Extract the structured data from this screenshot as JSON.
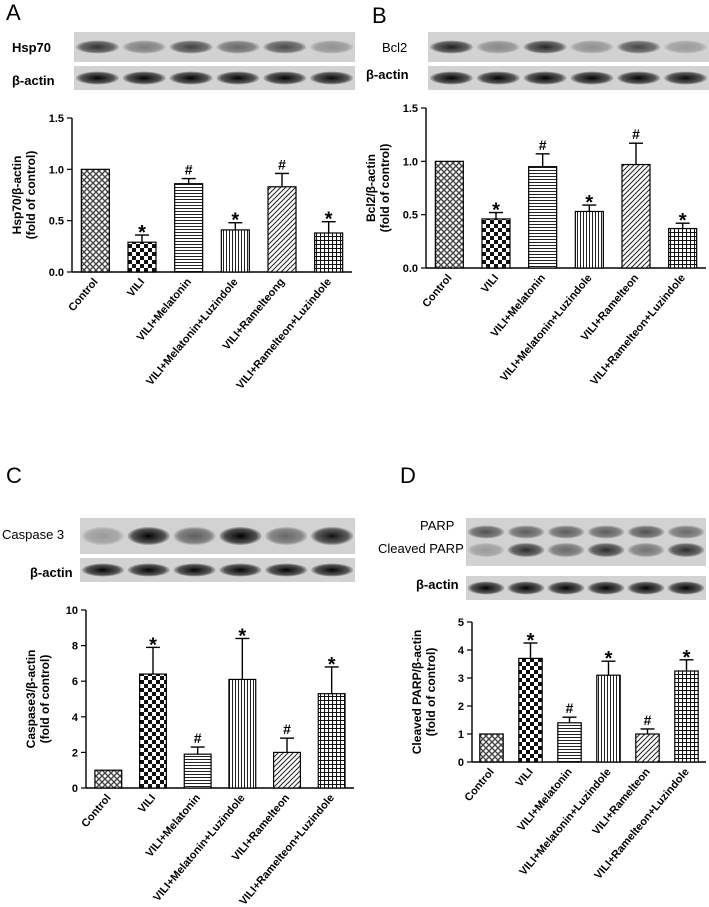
{
  "panels": [
    {
      "letter": "A",
      "blots": [
        {
          "label": "Hsp70",
          "intensity": [
            0.78,
            0.45,
            0.72,
            0.55,
            0.68,
            0.35
          ],
          "thin": true
        },
        {
          "label": "β-actin",
          "intensity": [
            0.95,
            0.95,
            0.95,
            0.95,
            0.95,
            0.93
          ],
          "thin": true
        }
      ],
      "chart_data": {
        "type": "bar",
        "ylabel": "Hsp70/β-actin\n(fold of control)",
        "ylim": [
          0,
          1.5
        ],
        "yticks": [
          "0.0",
          "0.5",
          "1.0",
          "1.5"
        ],
        "categories": [
          "Control",
          "VILI",
          "VILI+Melatonin",
          "VILI+Melatonin+Luzindole",
          "VILI+Ramelteong",
          "VILI+Ramelteon+Luzindole"
        ],
        "values": [
          1.0,
          0.29,
          0.86,
          0.41,
          0.83,
          0.38
        ],
        "errors": [
          0.0,
          0.07,
          0.05,
          0.07,
          0.13,
          0.11
        ],
        "annotations": [
          "",
          "*",
          "#",
          "*",
          "#",
          "*"
        ]
      }
    },
    {
      "letter": "B",
      "blots": [
        {
          "label": "Bcl2",
          "intensity": [
            0.85,
            0.4,
            0.82,
            0.35,
            0.7,
            0.3
          ],
          "thin": true
        },
        {
          "label": "β-actin",
          "intensity": [
            0.95,
            0.95,
            0.95,
            0.95,
            0.95,
            0.93
          ],
          "thin": true
        }
      ],
      "chart_data": {
        "type": "bar",
        "ylabel": "Bcl2/β-actin\n(fold of control)",
        "ylim": [
          0,
          1.5
        ],
        "yticks": [
          "0.0",
          "0.5",
          "1.0",
          "1.5"
        ],
        "categories": [
          "Control",
          "VILI",
          "VILI+Melatonin",
          "VILI+Melatonin+Luzindole",
          "VILI+Ramelteon",
          "VILI+Ramelteon+Luzindole"
        ],
        "values": [
          1.0,
          0.46,
          0.95,
          0.53,
          0.97,
          0.37
        ],
        "errors": [
          0.0,
          0.06,
          0.12,
          0.06,
          0.2,
          0.05
        ],
        "annotations": [
          "",
          "*",
          "#",
          "*",
          "#",
          "*"
        ]
      }
    },
    {
      "letter": "C",
      "blots": [
        {
          "label": "Caspase 3",
          "intensity": [
            0.3,
            0.98,
            0.6,
            1.0,
            0.55,
            0.9
          ],
          "thin": false
        },
        {
          "label": "β-actin",
          "intensity": [
            0.95,
            0.95,
            0.95,
            0.95,
            0.95,
            0.95
          ],
          "thin": true
        }
      ],
      "chart_data": {
        "type": "bar",
        "ylabel": "Caspase3/β-actin\n(fold of control)",
        "ylim": [
          0,
          10
        ],
        "yticks": [
          "0",
          "2",
          "4",
          "6",
          "8",
          "10"
        ],
        "categories": [
          "Control",
          "VILI",
          "VILI+Melatonin",
          "VILI+Melatonin+Luzindole",
          "VILI+Ramelteon",
          "VILI+Ramelteon+Luzindole"
        ],
        "values": [
          1.0,
          6.4,
          1.9,
          6.1,
          2.0,
          5.3
        ],
        "errors": [
          0.0,
          1.5,
          0.4,
          2.3,
          0.8,
          1.5
        ],
        "annotations": [
          "",
          "*",
          "#",
          "*",
          "#",
          "*"
        ]
      }
    },
    {
      "letter": "D",
      "blots": [
        {
          "label": "PARP",
          "label2": "Cleaved PARP",
          "intensity": [
            0.65,
            0.6,
            0.6,
            0.6,
            0.65,
            0.55
          ],
          "intensity2": [
            0.3,
            0.8,
            0.55,
            0.8,
            0.5,
            0.8
          ],
          "double": true
        },
        {
          "label": "β-actin",
          "intensity": [
            0.95,
            0.95,
            0.95,
            0.95,
            0.95,
            0.95
          ],
          "thin": true
        }
      ],
      "chart_data": {
        "type": "bar",
        "ylabel": "Cleaved PARP/β-actin\n(fold of control)",
        "ylim": [
          0,
          5
        ],
        "yticks": [
          "0",
          "1",
          "2",
          "3",
          "4",
          "5"
        ],
        "categories": [
          "Control",
          "VILI",
          "VILI+Melatonin",
          "VILI+Melatonin+Luzindole",
          "VILI+Ramelteon",
          "VILI+Ramelteon+Luzindole"
        ],
        "values": [
          1.0,
          3.7,
          1.4,
          3.1,
          1.0,
          3.25
        ],
        "errors": [
          0.0,
          0.55,
          0.2,
          0.5,
          0.18,
          0.4
        ],
        "annotations": [
          "",
          "*",
          "#",
          "*",
          "#",
          "*"
        ]
      }
    }
  ]
}
